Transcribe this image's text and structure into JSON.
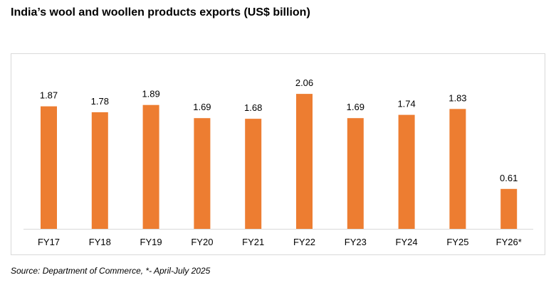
{
  "title": "India’s wool and woollen products exports (US$ billion)",
  "source": "Source: Department of Commerce, *- April-July 2025",
  "colors": {
    "bar": "#ED7D31",
    "axis": "#D9D9D9",
    "frame": "#D9D9D9"
  },
  "chart_data": {
    "type": "bar",
    "title": "India’s wool and woollen products exports (US$ billion)",
    "xlabel": "",
    "ylabel": "",
    "categories": [
      "FY17",
      "FY18",
      "FY19",
      "FY20",
      "FY21",
      "FY22",
      "FY23",
      "FY24",
      "FY25",
      "FY26*"
    ],
    "values": [
      1.87,
      1.78,
      1.89,
      1.69,
      1.68,
      2.06,
      1.69,
      1.74,
      1.83,
      0.61
    ],
    "data_labels": [
      "1.87",
      "1.78",
      "1.89",
      "1.69",
      "1.68",
      "2.06",
      "1.69",
      "1.74",
      "1.83",
      "0.61"
    ],
    "ylim": [
      0,
      2.5
    ],
    "grid": false,
    "legend": "none",
    "y_axis_visible": false,
    "annotations": [
      "*- April-July 2025"
    ]
  }
}
